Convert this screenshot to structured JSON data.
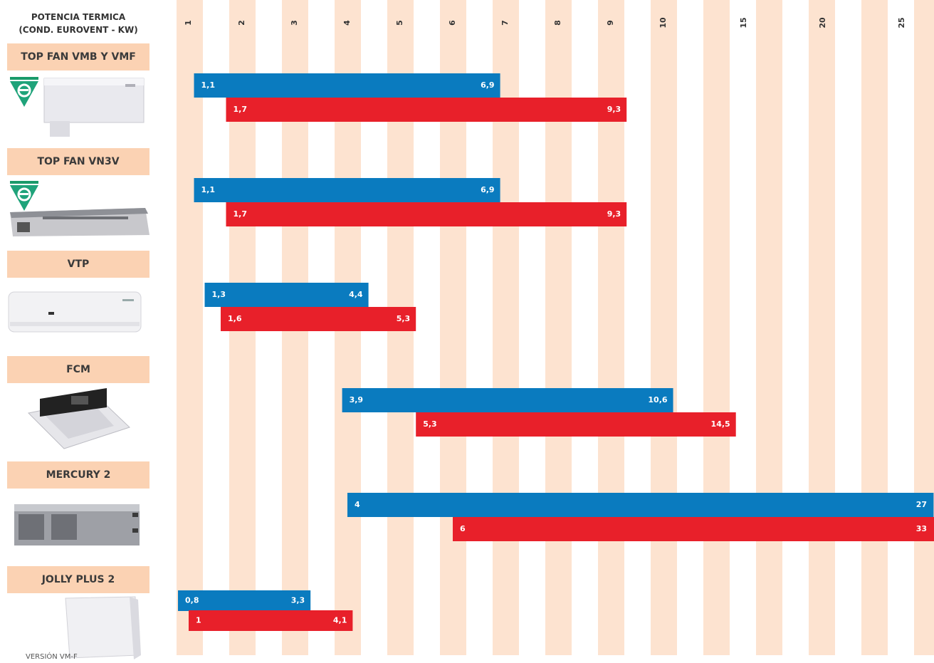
{
  "chart_data": {
    "type": "bar",
    "orientation": "horizontal-range",
    "axis_title_lines": [
      "POTENCIA TERMICA",
      "(COND. EUROVENT - KW)"
    ],
    "x_ticks": [
      "1",
      "2",
      "3",
      "4",
      "5",
      "6",
      "7",
      "8",
      "9",
      "10",
      "15",
      "20",
      "25"
    ],
    "categories": [
      "TOP FAN VMB Y VMF",
      "TOP FAN VN3V",
      "VTP",
      "FCM",
      "MERCURY 2",
      "JOLLY PLUS 2"
    ],
    "series": [
      {
        "color": "#0a7bbf",
        "ranges": [
          [
            1.1,
            6.9
          ],
          [
            1.1,
            6.9
          ],
          [
            1.3,
            4.4
          ],
          [
            3.9,
            10.6
          ],
          [
            4,
            27
          ],
          [
            0.8,
            3.3
          ]
        ],
        "labels": [
          [
            "1,1",
            "6,9"
          ],
          [
            "1,1",
            "6,9"
          ],
          [
            "1,3",
            "4,4"
          ],
          [
            "3,9",
            "10,6"
          ],
          [
            "4",
            "27"
          ],
          [
            "0,8",
            "3,3"
          ]
        ]
      },
      {
        "color": "#e8202a",
        "ranges": [
          [
            1.7,
            9.3
          ],
          [
            1.7,
            9.3
          ],
          [
            1.6,
            5.3
          ],
          [
            5.3,
            14.5
          ],
          [
            6,
            33
          ],
          [
            1,
            4.1
          ]
        ],
        "labels": [
          [
            "1,7",
            "9,3"
          ],
          [
            "1,7",
            "9,3"
          ],
          [
            "1,6",
            "5,3"
          ],
          [
            "5,3",
            "14,5"
          ],
          [
            "6",
            "33"
          ],
          [
            "1",
            "4,1"
          ]
        ]
      }
    ],
    "footnote": "VERSIÓN VM-F",
    "colors": {
      "stripe": "#fde3d0",
      "label_box": "#fbd2b3",
      "text": "#3a3a3a"
    }
  }
}
